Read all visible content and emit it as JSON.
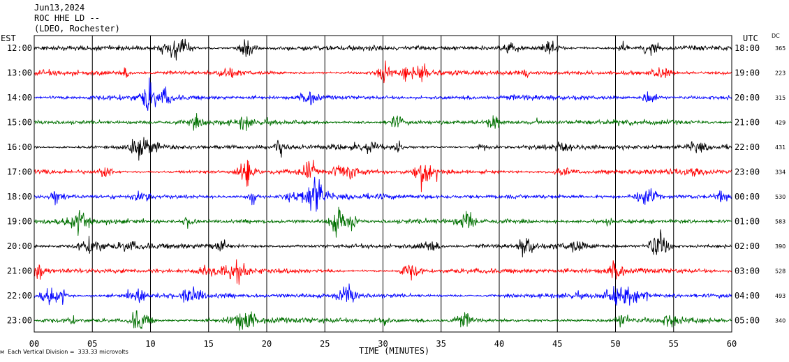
{
  "header": {
    "date": "Jun13,2024",
    "station": "ROC HHE LD --",
    "network": "(LDEO, Rochester)"
  },
  "left_zone": "EST",
  "right_zone": "UTC",
  "dc_label": "DC",
  "footer": {
    "mark": "ᴍ",
    "division": "Each Vertical Division =  333.33 microvolts"
  },
  "colors": {
    "trace_cycle": [
      "#000000",
      "#ff0000",
      "#0000ff",
      "#007000"
    ]
  },
  "chart_data": {
    "type": "line",
    "title": "",
    "xlabel": "TIME (MINUTES)",
    "xlim": [
      0,
      60
    ],
    "x_ticks": [
      "00",
      "05",
      "10",
      "15",
      "20",
      "25",
      "30",
      "35",
      "40",
      "45",
      "50",
      "55",
      "60"
    ],
    "grid": true,
    "series": [
      {
        "est": "12:00",
        "utc": "18:00",
        "dc": "365",
        "color": "#000000"
      },
      {
        "est": "13:00",
        "utc": "19:00",
        "dc": "223",
        "color": "#ff0000"
      },
      {
        "est": "14:00",
        "utc": "20:00",
        "dc": "315",
        "color": "#0000ff"
      },
      {
        "est": "15:00",
        "utc": "21:00",
        "dc": "429",
        "color": "#007000"
      },
      {
        "est": "16:00",
        "utc": "22:00",
        "dc": "431",
        "color": "#000000"
      },
      {
        "est": "17:00",
        "utc": "23:00",
        "dc": "334",
        "color": "#ff0000"
      },
      {
        "est": "18:00",
        "utc": "00:00",
        "dc": "530",
        "color": "#0000ff"
      },
      {
        "est": "19:00",
        "utc": "01:00",
        "dc": "583",
        "color": "#007000"
      },
      {
        "est": "20:00",
        "utc": "02:00",
        "dc": "390",
        "color": "#000000"
      },
      {
        "est": "21:00",
        "utc": "03:00",
        "dc": "528",
        "color": "#ff0000"
      },
      {
        "est": "22:00",
        "utc": "04:00",
        "dc": "493",
        "color": "#0000ff"
      },
      {
        "est": "23:00",
        "utc": "05:00",
        "dc": "340",
        "color": "#007000"
      }
    ]
  }
}
